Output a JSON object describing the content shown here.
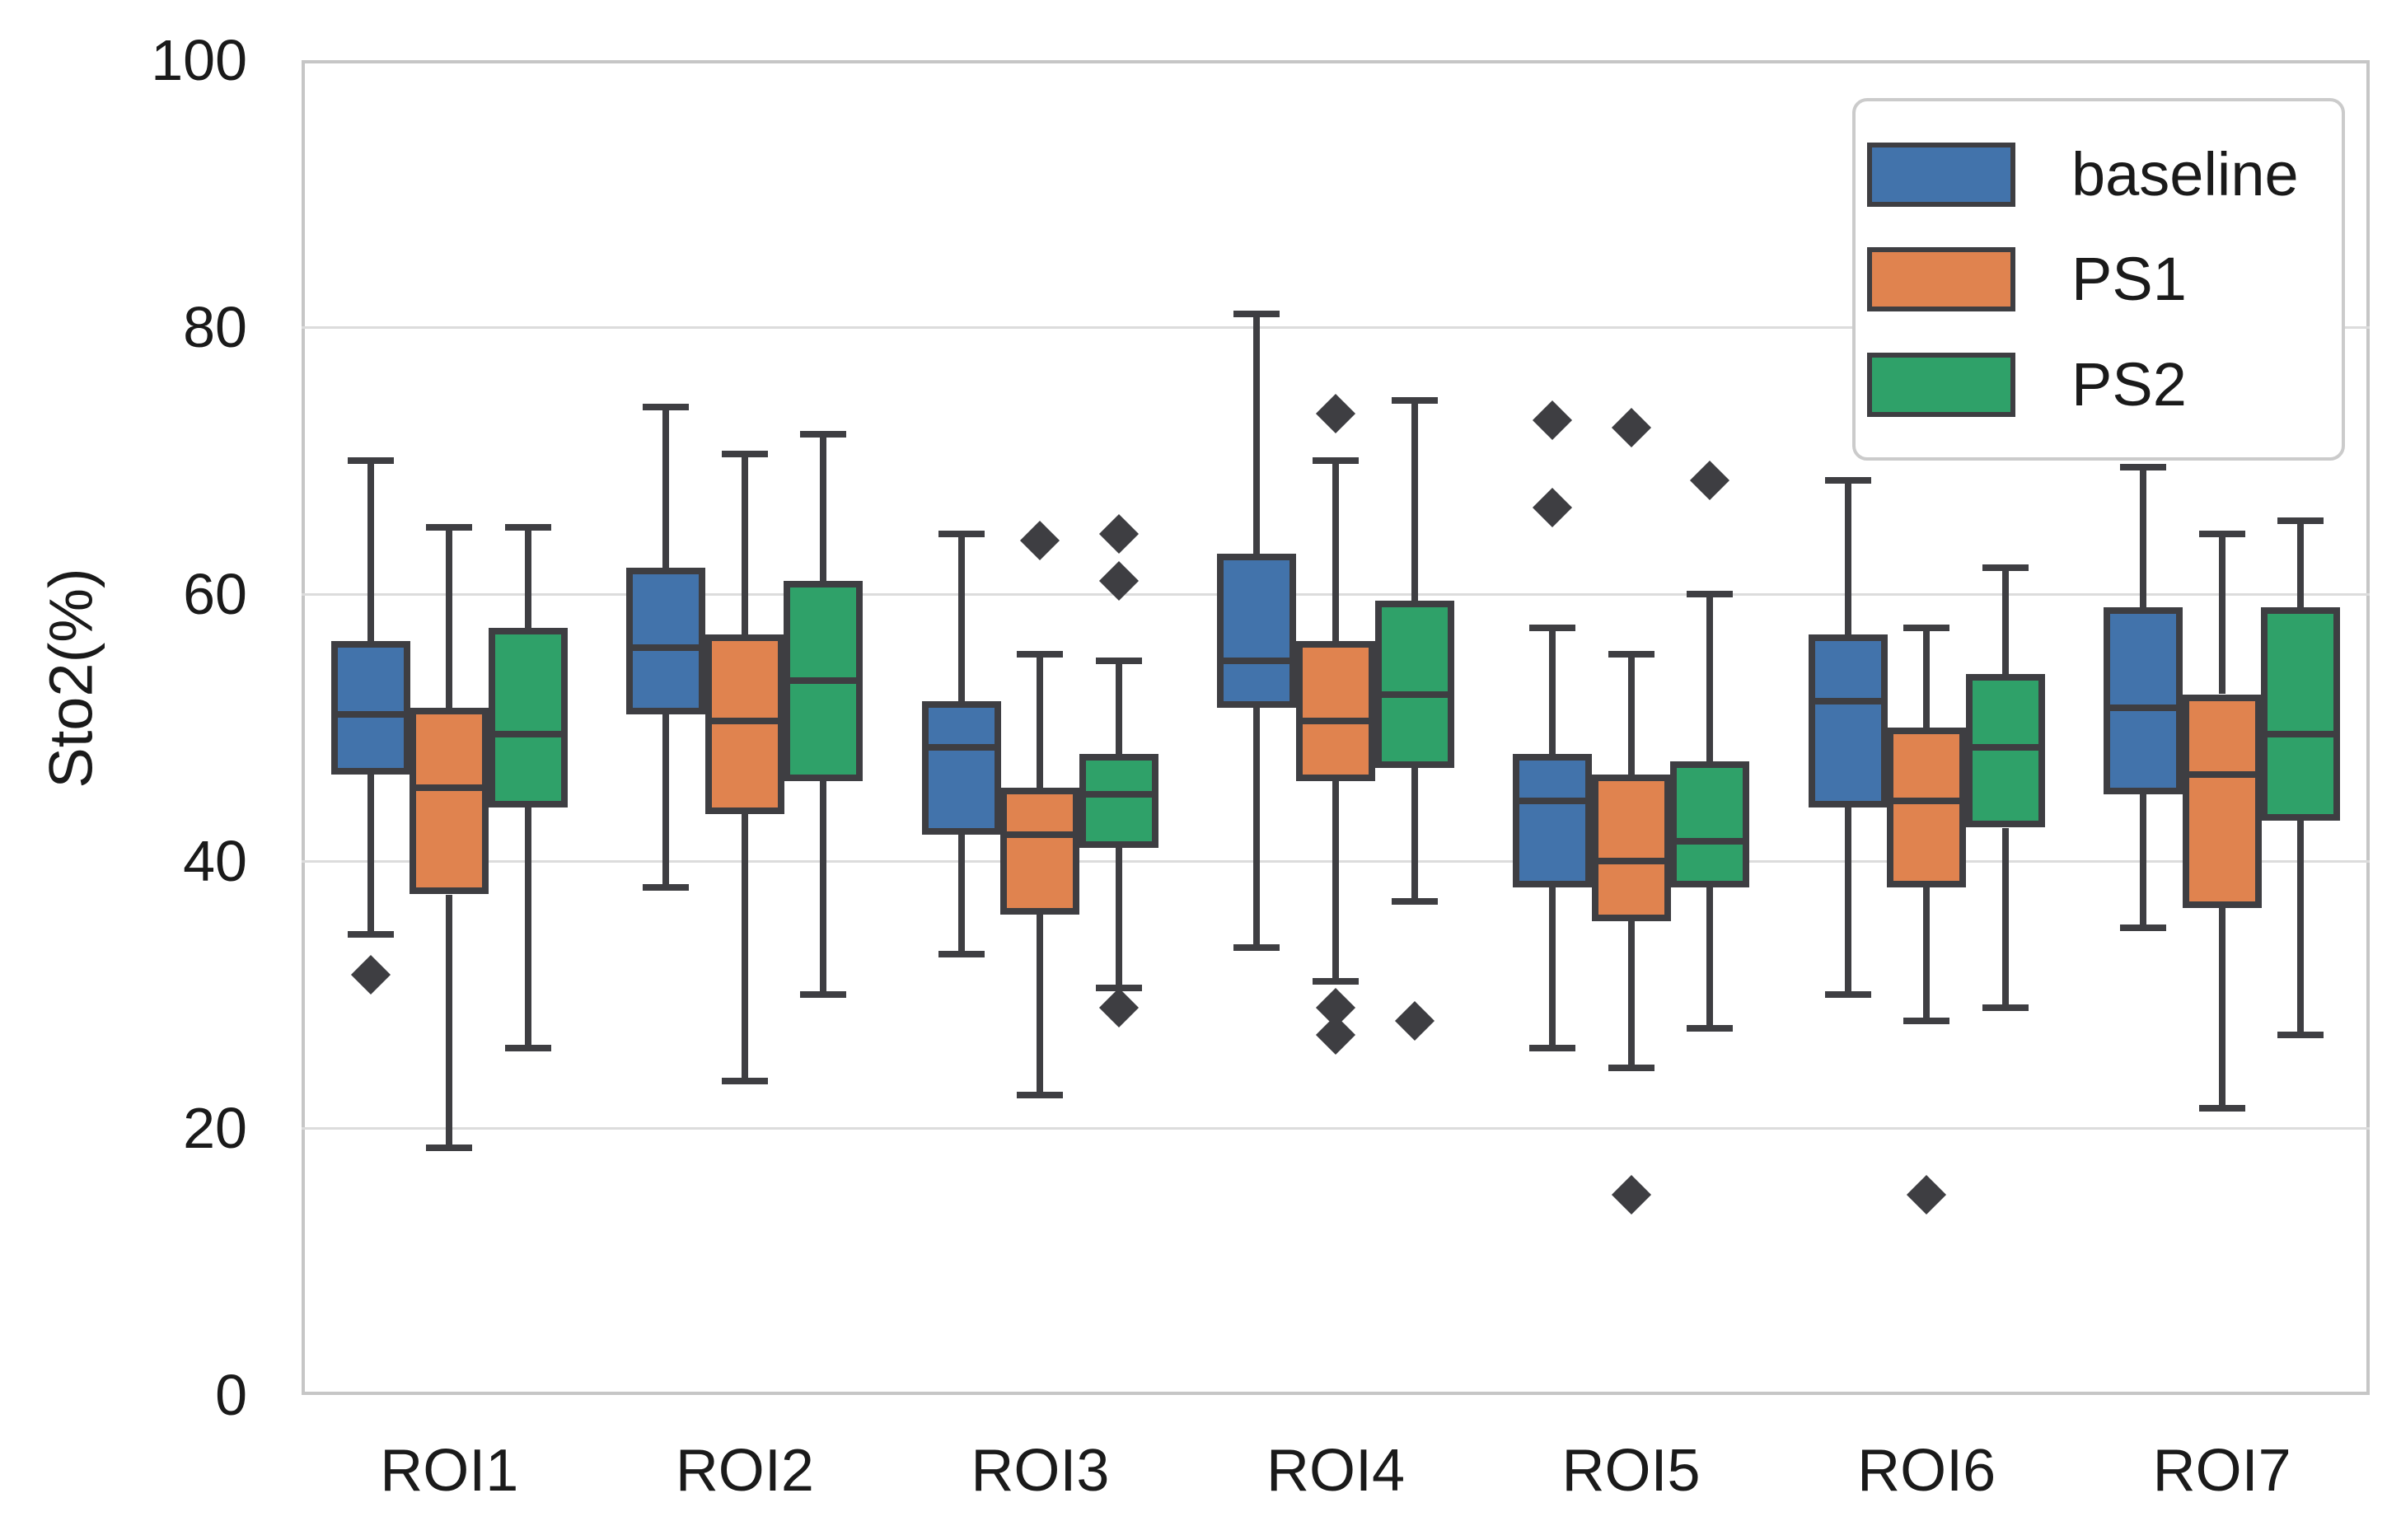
{
  "figure": {
    "title": "",
    "ylabel": "Sto2(%)"
  },
  "axis": {
    "ylim": [
      0,
      100
    ],
    "yticks": [
      0,
      20,
      40,
      60,
      80,
      100
    ],
    "grid": true,
    "grid_color": "#dcdcdc",
    "spine_color": "#c6c6c6",
    "text_color": "#1a1a1a"
  },
  "legend": {
    "position": "upper-right",
    "entries": [
      {
        "label": "baseline",
        "color": "#4273ab"
      },
      {
        "label": "PS1",
        "color": "#e0834f"
      },
      {
        "label": "PS2",
        "color": "#2fa169"
      }
    ]
  },
  "chart_data": {
    "type": "boxplot",
    "title": "",
    "xlabel": "",
    "ylabel": "Sto2(%)",
    "ylim": [
      0,
      100
    ],
    "grid": true,
    "legend_position": "upper-right",
    "outlier_marker": "diamond",
    "box_edge_color": "#3e3e42",
    "categories": [
      "ROI1",
      "ROI2",
      "ROI3",
      "ROI4",
      "ROI5",
      "ROI6",
      "ROI7"
    ],
    "series": [
      {
        "name": "baseline",
        "color": "#4273ab",
        "boxes": [
          {
            "whislo": 34.5,
            "q1": 46.5,
            "med": 51,
            "q3": 56.5,
            "whishi": 70,
            "outliers": [
              31.5
            ]
          },
          {
            "whislo": 38,
            "q1": 51,
            "med": 56,
            "q3": 62,
            "whishi": 74,
            "outliers": []
          },
          {
            "whislo": 33,
            "q1": 42,
            "med": 48.5,
            "q3": 52,
            "whishi": 64.5,
            "outliers": []
          },
          {
            "whislo": 33.5,
            "q1": 51.5,
            "med": 55,
            "q3": 63,
            "whishi": 81,
            "outliers": []
          },
          {
            "whislo": 26,
            "q1": 38,
            "med": 44.5,
            "q3": 48,
            "whishi": 57.5,
            "outliers": [
              73,
              66.5
            ]
          },
          {
            "whislo": 30,
            "q1": 44,
            "med": 52,
            "q3": 57,
            "whishi": 68.5,
            "outliers": []
          },
          {
            "whislo": 35,
            "q1": 45,
            "med": 51.5,
            "q3": 59,
            "whishi": 69.5,
            "outliers": []
          }
        ]
      },
      {
        "name": "PS1",
        "color": "#e0834f",
        "boxes": [
          {
            "whislo": 18.5,
            "q1": 37.5,
            "med": 45.5,
            "q3": 51.5,
            "whishi": 65,
            "outliers": []
          },
          {
            "whislo": 23.5,
            "q1": 43.5,
            "med": 50.5,
            "q3": 57,
            "whishi": 70.5,
            "outliers": []
          },
          {
            "whislo": 22.5,
            "q1": 36,
            "med": 42,
            "q3": 45.5,
            "whishi": 55.5,
            "outliers": [
              64
            ]
          },
          {
            "whislo": 31,
            "q1": 46,
            "med": 50.5,
            "q3": 56.5,
            "whishi": 70,
            "outliers": [
              73.5,
              29,
              27
            ]
          },
          {
            "whislo": 24.5,
            "q1": 35.5,
            "med": 40,
            "q3": 46.5,
            "whishi": 55.5,
            "outliers": [
              72.5,
              15
            ]
          },
          {
            "whislo": 28,
            "q1": 38,
            "med": 44.5,
            "q3": 50,
            "whishi": 57.5,
            "outliers": [
              15
            ]
          },
          {
            "whislo": 21.5,
            "q1": 36.5,
            "med": 46.5,
            "q3": 52.5,
            "whishi": 64.5,
            "outliers": []
          }
        ]
      },
      {
        "name": "PS2",
        "color": "#2fa169",
        "boxes": [
          {
            "whislo": 26,
            "q1": 44,
            "med": 49.5,
            "q3": 57.5,
            "whishi": 65,
            "outliers": []
          },
          {
            "whislo": 30,
            "q1": 46,
            "med": 53.5,
            "q3": 61,
            "whishi": 72,
            "outliers": []
          },
          {
            "whislo": 30.5,
            "q1": 41,
            "med": 45,
            "q3": 48,
            "whishi": 55,
            "outliers": [
              64.5,
              61,
              29
            ]
          },
          {
            "whislo": 37,
            "q1": 47,
            "med": 52.5,
            "q3": 59.5,
            "whishi": 74.5,
            "outliers": [
              28
            ]
          },
          {
            "whislo": 27.5,
            "q1": 38,
            "med": 41.5,
            "q3": 47.5,
            "whishi": 60,
            "outliers": [
              68.5
            ]
          },
          {
            "whislo": 29,
            "q1": 42.5,
            "med": 48.5,
            "q3": 54,
            "whishi": 62,
            "outliers": []
          },
          {
            "whislo": 27,
            "q1": 43,
            "med": 49.5,
            "q3": 59,
            "whishi": 65.5,
            "outliers": []
          }
        ]
      }
    ]
  }
}
